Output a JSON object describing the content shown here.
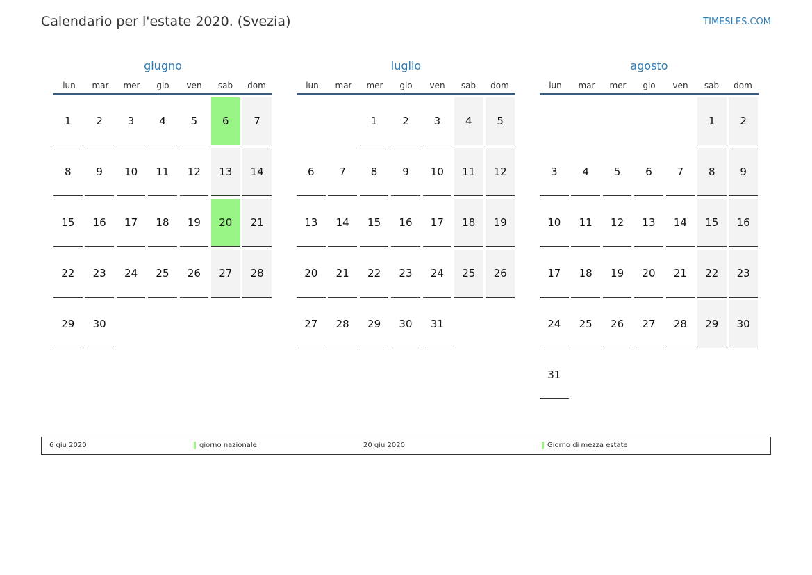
{
  "header": {
    "title": "Calendario per l'estate 2020. (Svezia)",
    "site": "TIMESLES.COM"
  },
  "weekdays": [
    "lun",
    "mar",
    "mer",
    "gio",
    "ven",
    "sab",
    "dom"
  ],
  "colors": {
    "accent": "#2f7db8",
    "holiday": "#99f486",
    "weekend": "#f3f3f3",
    "rule": "#3d5a80"
  },
  "months": [
    {
      "name": "giugno",
      "offset": 0,
      "days": 30,
      "holidays": [
        6,
        20
      ]
    },
    {
      "name": "luglio",
      "offset": 2,
      "days": 31,
      "holidays": []
    },
    {
      "name": "agosto",
      "offset": 5,
      "days": 31,
      "holidays": []
    }
  ],
  "legend": [
    {
      "date": "6 giu 2020",
      "label": "giorno nazionale"
    },
    {
      "date": "20 giu 2020",
      "label": "Giorno di mezza estate"
    }
  ]
}
